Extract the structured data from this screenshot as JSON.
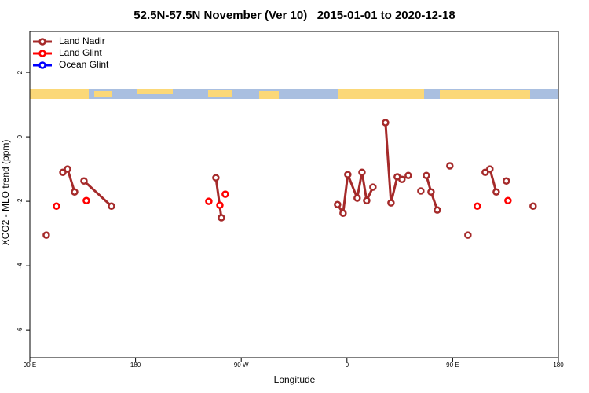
{
  "chart_data": {
    "type": "line",
    "title": "52.5N-57.5N November (Ver 10)   2015-01-01 to 2020-12-18",
    "x_label": "Longitude",
    "y_label": "XCO2 - MLO trend (ppm)",
    "xlim": [
      90,
      540
    ],
    "ylim": [
      -6.85,
      3.27
    ],
    "xticks": [
      {
        "value": 90,
        "label": "90 E"
      },
      180,
      {
        "value": 270,
        "label": "90 W"
      },
      {
        "value": 360,
        "label": "0"
      },
      {
        "value": 450,
        "label": "90 E"
      },
      {
        "value": 540,
        "label": "180"
      }
    ],
    "yticks": [
      -6,
      -4,
      -2,
      0,
      2
    ],
    "grid": false,
    "legend": "top-left",
    "series": [
      {
        "name": "Land Nadir",
        "color": "#a52a2a",
        "line": true,
        "x": [
          104.0,
          null,
          118.1,
          122.1,
          128.1,
          null,
          136.1,
          159.5,
          null,
          248.4,
          253.1,
          null,
          352.0,
          356.7,
          360.7,
          368.7,
          372.8,
          376.8,
          382.1,
          null,
          392.8,
          397.5,
          402.8,
          406.8,
          412.2,
          null,
          422.9,
          null,
          427.6,
          431.6,
          436.9,
          null,
          447.6,
          null,
          463.0,
          null,
          477.7,
          481.7,
          487.1,
          null,
          495.7,
          null,
          518.5
        ],
        "values": [
          -3.05,
          null,
          -1.1,
          -1.0,
          -1.71,
          null,
          -1.37,
          -2.15,
          null,
          -1.27,
          -2.51,
          null,
          -2.1,
          -2.37,
          -1.17,
          -1.9,
          -1.1,
          -1.98,
          -1.56,
          null,
          0.44,
          -2.05,
          -1.24,
          -1.32,
          -1.2,
          null,
          -1.68,
          null,
          -1.2,
          -1.71,
          -2.27,
          null,
          -0.9,
          null,
          -3.05,
          null,
          -1.1,
          -1.0,
          -1.71,
          null,
          -1.37,
          null,
          -2.15
        ]
      },
      {
        "name": "Land Glint",
        "color": "#ff0000",
        "line": false,
        "x": [
          112.7,
          138.1,
          242.4,
          251.8,
          256.4,
          471.0,
          497.1
        ],
        "values": [
          -2.15,
          -1.98,
          -2.0,
          -2.12,
          -1.78,
          -2.15,
          -1.98
        ]
      },
      {
        "name": "Ocean Glint",
        "color": "#0000ff",
        "line": false,
        "x": [],
        "values": []
      }
    ]
  }
}
